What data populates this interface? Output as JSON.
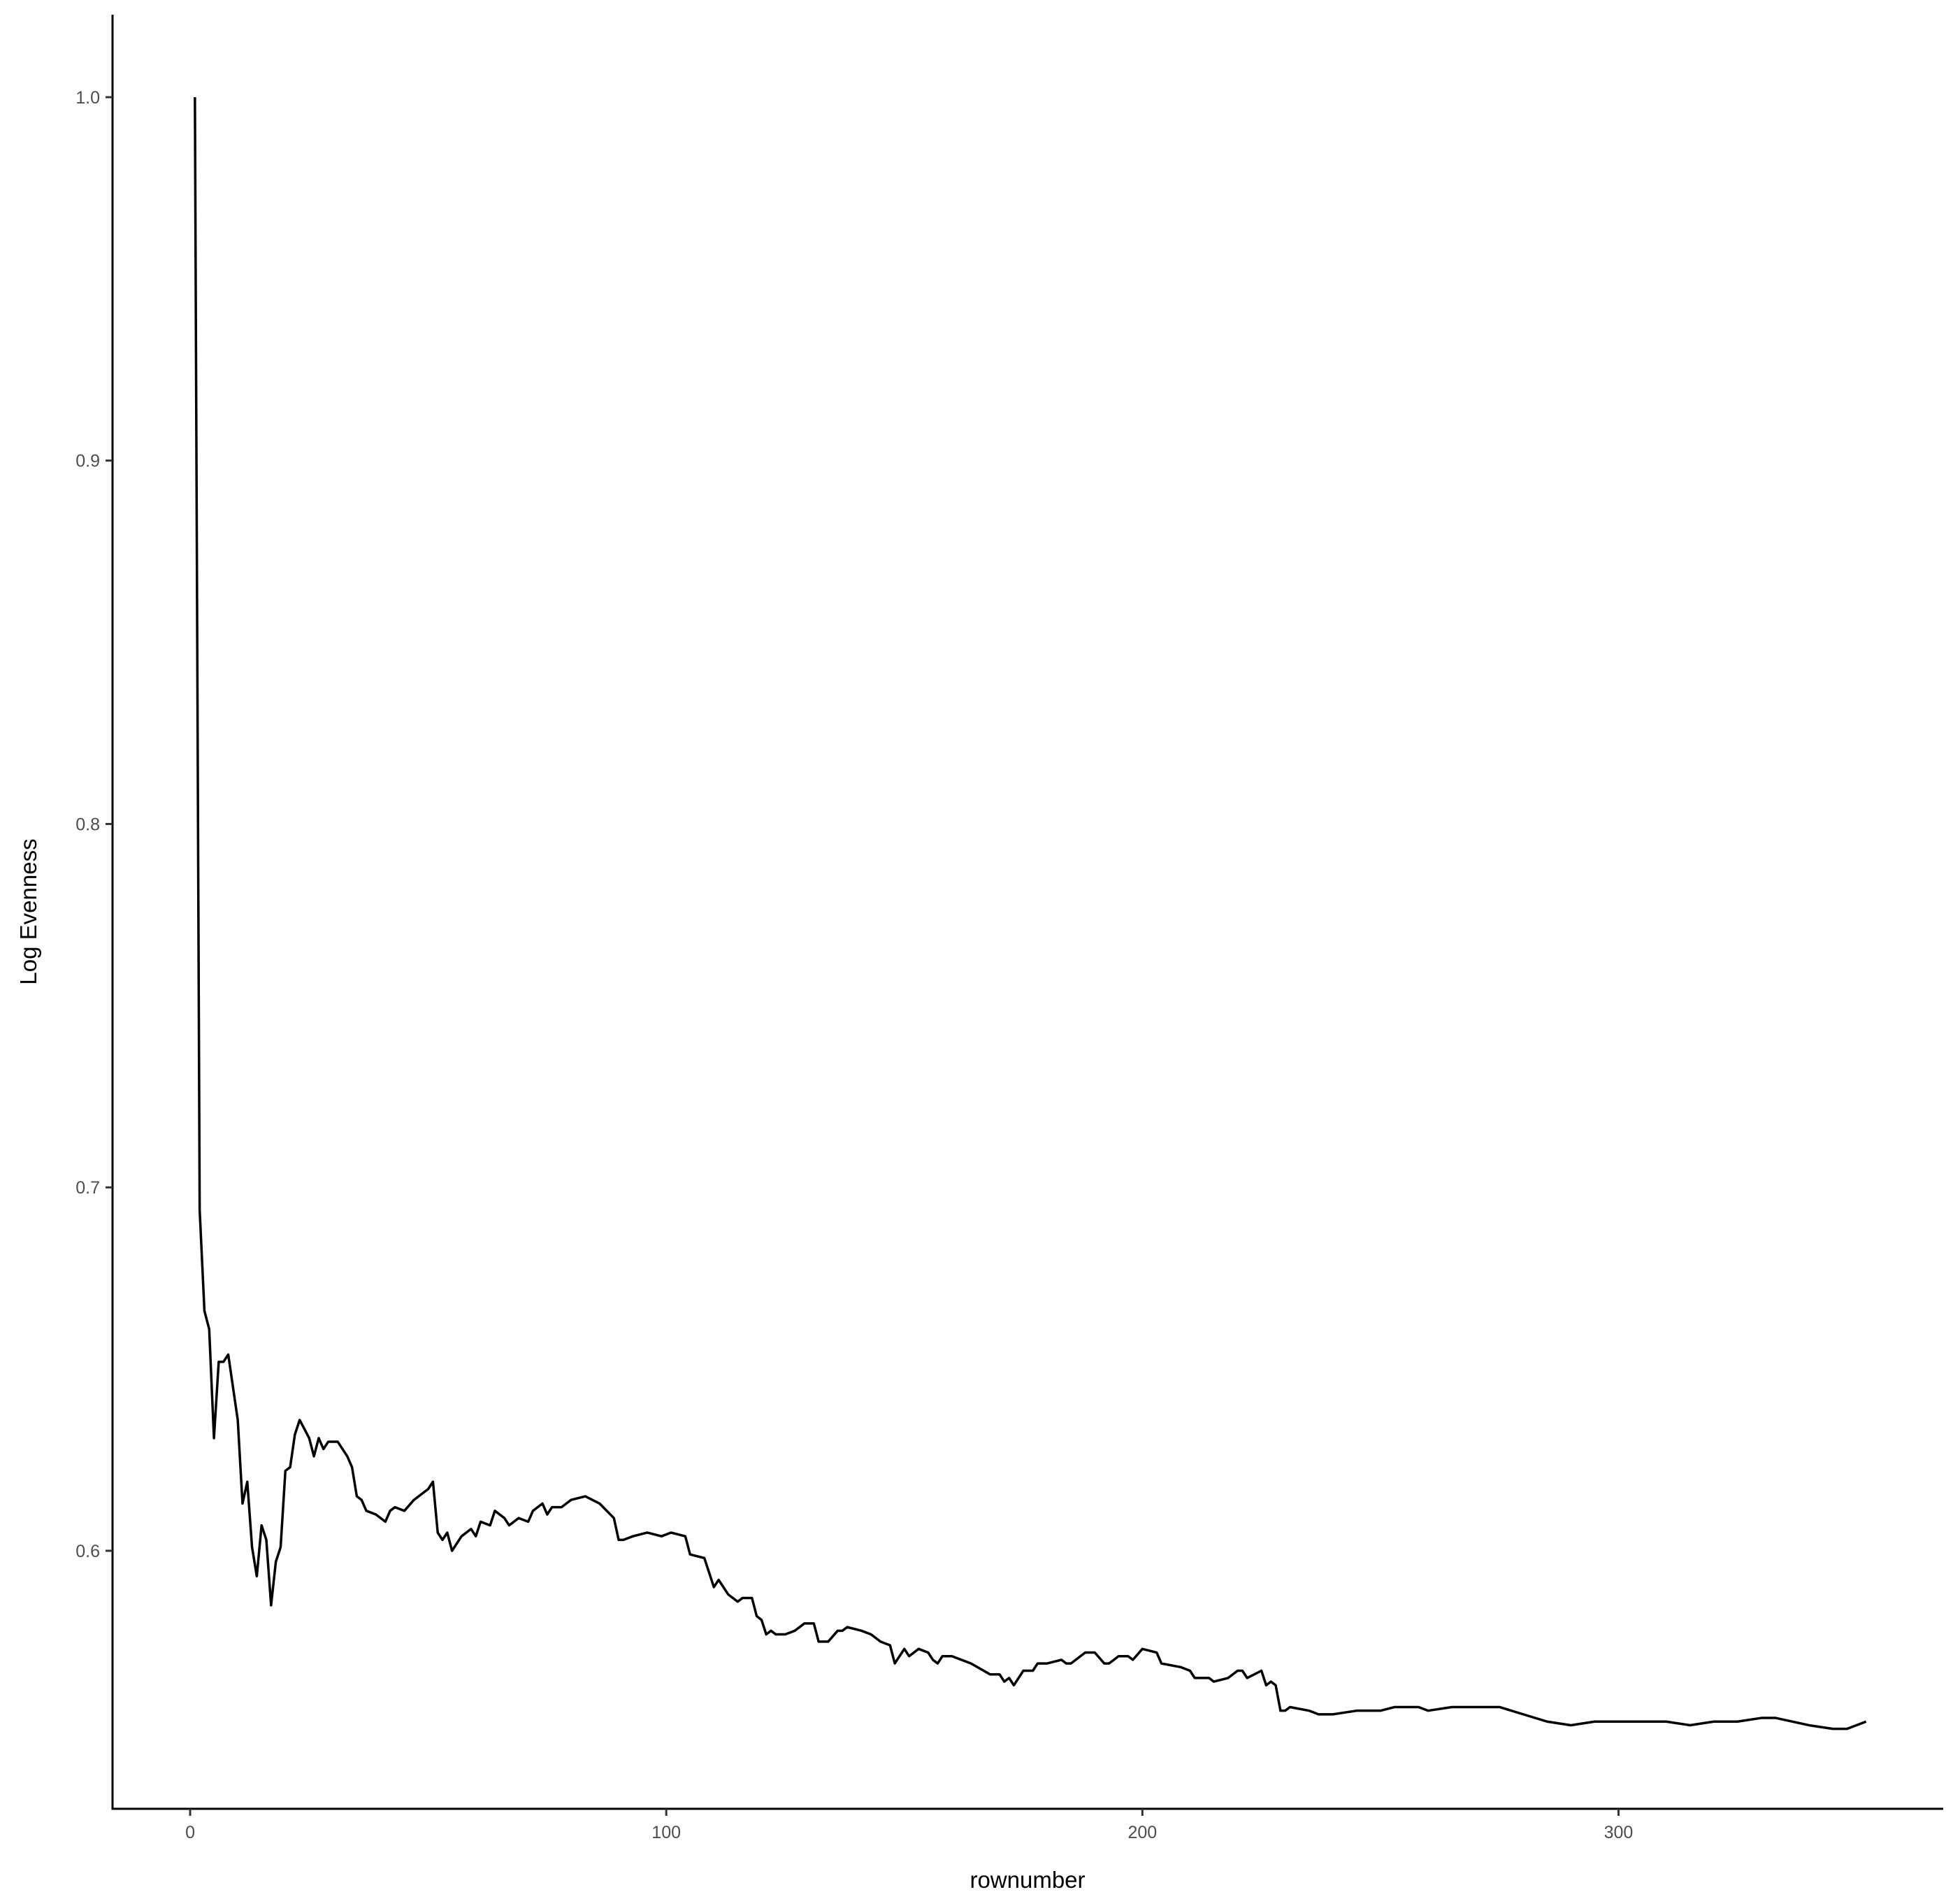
{
  "chart_data": {
    "type": "line",
    "x_label": "rownumber",
    "y_label": "Log Evenness",
    "color": "#000000",
    "grid": false,
    "xlim": [
      -16.3,
      368.2
    ],
    "ylim": [
      0.529,
      1.0227
    ],
    "xticks": [
      0,
      100,
      200,
      300
    ],
    "yticks": [
      0.6,
      0.7,
      0.8,
      0.9,
      {
        "value": 1,
        "label": "1.0"
      }
    ],
    "x": [
      1,
      2,
      3,
      4,
      5,
      6,
      7,
      8,
      10,
      11,
      12,
      13,
      14,
      15,
      16,
      17,
      18,
      19,
      20,
      21,
      22,
      23,
      25,
      26,
      27,
      28,
      29,
      31,
      33,
      34,
      35,
      36,
      37,
      39,
      41,
      42,
      43,
      45,
      47,
      50,
      51,
      52,
      53,
      54,
      55,
      57,
      59,
      60,
      61,
      63,
      64,
      66,
      67,
      69,
      71,
      72,
      74,
      75,
      76,
      78,
      80,
      83,
      86,
      89,
      90,
      91,
      93,
      96,
      99,
      101,
      104,
      105,
      108,
      109,
      110,
      111,
      113,
      115,
      116,
      118,
      119,
      120,
      121,
      122,
      123,
      125,
      127,
      129,
      131,
      132,
      134,
      136,
      137,
      138,
      141,
      143,
      145,
      147,
      148,
      150,
      151,
      153,
      155,
      156,
      157,
      158,
      160,
      164,
      168,
      170,
      171,
      172,
      173,
      175,
      177,
      178,
      180,
      183,
      184,
      185,
      186,
      188,
      190,
      192,
      193,
      195,
      197,
      198,
      200,
      203,
      204,
      208,
      210,
      211,
      214,
      215,
      218,
      220,
      221,
      222,
      225,
      226,
      227,
      228,
      229,
      230,
      231,
      235,
      237,
      240,
      245,
      250,
      253,
      258,
      260,
      265,
      270,
      275,
      280,
      285,
      290,
      295,
      300,
      305,
      310,
      315,
      320,
      325,
      330,
      333,
      340,
      345,
      348,
      352
    ],
    "values": [
      1.0,
      0.6938,
      0.666,
      0.661,
      0.631,
      0.652,
      0.652,
      0.654,
      0.636,
      0.613,
      0.619,
      0.601,
      0.593,
      0.607,
      0.603,
      0.585,
      0.597,
      0.601,
      0.622,
      0.623,
      0.632,
      0.636,
      0.631,
      0.626,
      0.631,
      0.628,
      0.63,
      0.63,
      0.626,
      0.623,
      0.615,
      0.614,
      0.611,
      0.61,
      0.608,
      0.611,
      0.612,
      0.611,
      0.614,
      0.617,
      0.619,
      0.605,
      0.603,
      0.605,
      0.6,
      0.604,
      0.606,
      0.604,
      0.608,
      0.607,
      0.611,
      0.609,
      0.607,
      0.609,
      0.608,
      0.611,
      0.613,
      0.61,
      0.612,
      0.612,
      0.614,
      0.615,
      0.613,
      0.609,
      0.603,
      0.603,
      0.604,
      0.605,
      0.604,
      0.605,
      0.604,
      0.599,
      0.598,
      0.594,
      0.59,
      0.592,
      0.588,
      0.586,
      0.587,
      0.587,
      0.582,
      0.581,
      0.577,
      0.578,
      0.577,
      0.577,
      0.578,
      0.58,
      0.58,
      0.575,
      0.575,
      0.578,
      0.578,
      0.579,
      0.578,
      0.577,
      0.575,
      0.574,
      0.569,
      0.573,
      0.571,
      0.573,
      0.572,
      0.57,
      0.569,
      0.571,
      0.571,
      0.569,
      0.566,
      0.566,
      0.564,
      0.565,
      0.563,
      0.567,
      0.567,
      0.569,
      0.569,
      0.57,
      0.569,
      0.569,
      0.57,
      0.572,
      0.572,
      0.569,
      0.569,
      0.571,
      0.571,
      0.57,
      0.573,
      0.572,
      0.569,
      0.568,
      0.567,
      0.565,
      0.565,
      0.564,
      0.565,
      0.567,
      0.567,
      0.565,
      0.567,
      0.563,
      0.564,
      0.563,
      0.556,
      0.556,
      0.557,
      0.556,
      0.555,
      0.555,
      0.556,
      0.556,
      0.557,
      0.557,
      0.556,
      0.557,
      0.557,
      0.557,
      0.555,
      0.553,
      0.552,
      0.553,
      0.553,
      0.553,
      0.553,
      0.552,
      0.553,
      0.553,
      0.554,
      0.554,
      0.552,
      0.551,
      0.551,
      0.553
    ]
  }
}
